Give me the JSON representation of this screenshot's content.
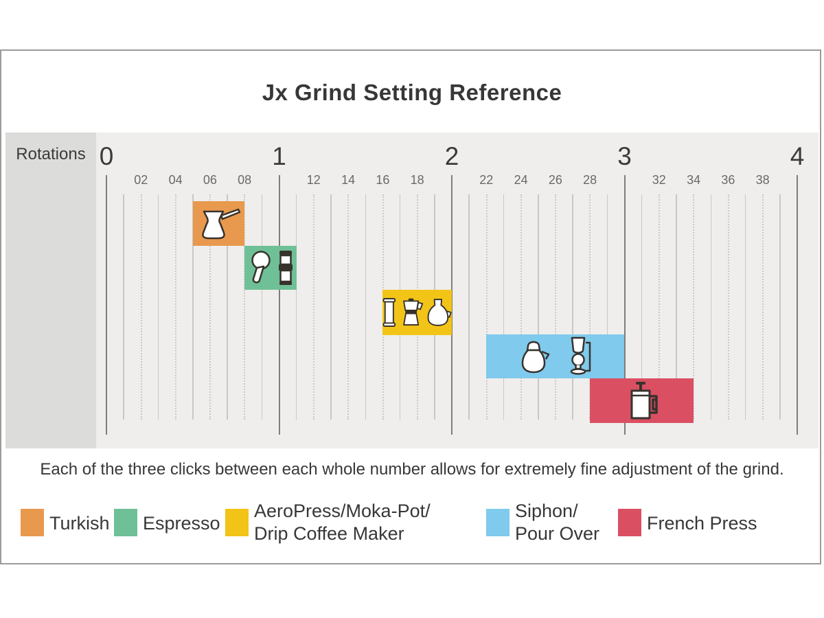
{
  "title": "Jx Grind Setting Reference",
  "axis_label": "Rotations",
  "caption": "Each of the three clicks between each whole number allows for extremely fine adjustment of the grind.",
  "colors": {
    "turkish": "#E8994E",
    "espresso": "#6FC096",
    "aeropress_moka_drip": "#F2C417",
    "siphon_pour_over": "#7FCAED",
    "french_press": "#DB4F63",
    "panel_bg": "#dcdcda",
    "plot_bg": "#efeeec",
    "major_grid": "#7d7d7b",
    "minor_grid": "#c8c7c4"
  },
  "chart_data": {
    "type": "bar",
    "orientation": "horizontal-range",
    "title": "Jx Grind Setting Reference",
    "xlabel": "Rotations",
    "xlim": [
      0,
      4
    ],
    "grid_step": 0.1,
    "major_ticks": [
      {
        "label": "0",
        "value": 0
      },
      {
        "label": "1",
        "value": 1
      },
      {
        "label": "2",
        "value": 2
      },
      {
        "label": "3",
        "value": 3
      },
      {
        "label": "4",
        "value": 4
      }
    ],
    "minor_ticks": [
      {
        "label": "02",
        "value": 0.2
      },
      {
        "label": "04",
        "value": 0.4
      },
      {
        "label": "06",
        "value": 0.6
      },
      {
        "label": "08",
        "value": 0.8
      },
      {
        "label": "12",
        "value": 1.2
      },
      {
        "label": "14",
        "value": 1.4
      },
      {
        "label": "16",
        "value": 1.6
      },
      {
        "label": "18",
        "value": 1.8
      },
      {
        "label": "22",
        "value": 2.2
      },
      {
        "label": "24",
        "value": 2.4
      },
      {
        "label": "26",
        "value": 2.6
      },
      {
        "label": "28",
        "value": 2.8
      },
      {
        "label": "32",
        "value": 3.2
      },
      {
        "label": "34",
        "value": 3.4
      },
      {
        "label": "36",
        "value": 3.6
      },
      {
        "label": "38",
        "value": 3.8
      }
    ],
    "series": [
      {
        "name": "Turkish",
        "start": 0.5,
        "end": 0.8,
        "color": "#E8994E",
        "icons": [
          "cezve"
        ]
      },
      {
        "name": "Espresso",
        "start": 0.8,
        "end": 1.1,
        "color": "#6FC096",
        "icons": [
          "portafilter",
          "tamper"
        ]
      },
      {
        "name": "AeroPress/Moka-Pot/Drip Coffee Maker",
        "start": 1.6,
        "end": 2.0,
        "color": "#F2C417",
        "icons": [
          "aeropress",
          "moka-pot",
          "drip-carafe"
        ]
      },
      {
        "name": "Siphon/Pour Over",
        "start": 2.2,
        "end": 3.0,
        "color": "#7FCAED",
        "icons": [
          "pour-over-carafe",
          "siphon"
        ]
      },
      {
        "name": "French Press",
        "start": 2.8,
        "end": 3.4,
        "color": "#DB4F63",
        "icons": [
          "french-press"
        ]
      }
    ]
  },
  "legend": [
    {
      "label_lines": [
        "Turkish"
      ],
      "color": "#E8994E"
    },
    {
      "label_lines": [
        "Espresso"
      ],
      "color": "#6FC096"
    },
    {
      "label_lines": [
        "AeroPress/Moka-Pot/",
        "Drip Coffee Maker"
      ],
      "color": "#F2C417"
    },
    {
      "label_lines": [
        "Siphon/",
        "Pour Over"
      ],
      "color": "#7FCAED"
    },
    {
      "label_lines": [
        "French Press"
      ],
      "color": "#DB4F63"
    }
  ]
}
